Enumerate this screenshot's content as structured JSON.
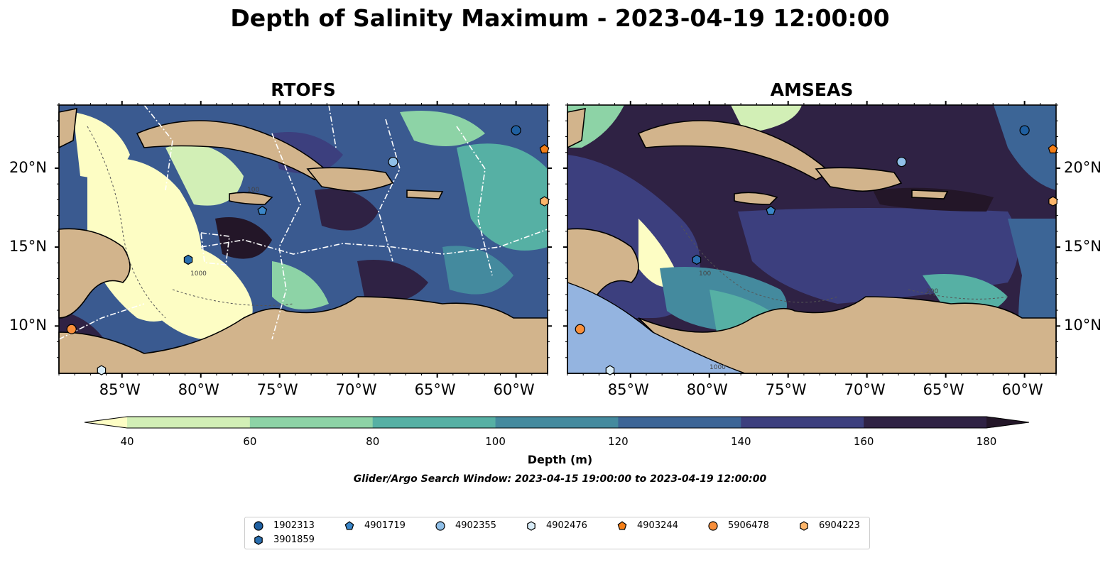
{
  "title": "Depth of Salinity Maximum - 2023-04-19 12:00:00",
  "panels": [
    {
      "title": "RTOFS"
    },
    {
      "title": "AMSEAS"
    }
  ],
  "axes": {
    "lon_ticks": [
      "85°W",
      "80°W",
      "75°W",
      "70°W",
      "65°W",
      "60°W"
    ],
    "lat_ticks": [
      "20°N",
      "15°N",
      "10°N"
    ],
    "lon_range": [
      -89,
      -58
    ],
    "lat_range": [
      7,
      24
    ]
  },
  "contour_labels": [
    "100",
    "1000",
    "100",
    "200",
    "1000"
  ],
  "colorbar": {
    "label": "Depth (m)",
    "ticks": [
      "40",
      "60",
      "80",
      "100",
      "120",
      "140",
      "160",
      "180"
    ],
    "colors": [
      "#fdfdc4",
      "#d2efb6",
      "#8dd3a6",
      "#56b0a4",
      "#448a9e",
      "#3c6596",
      "#3c3f7e",
      "#2f2244",
      "#231628"
    ],
    "extend": "both"
  },
  "search_window": "Glider/Argo Search Window: 2023-04-15 19:00:00 to 2023-04-19 12:00:00",
  "legend": {
    "items": [
      {
        "label": "1902313",
        "marker": "circle",
        "color": "#1f5fa0",
        "lon": -60.0,
        "lat": 22.4
      },
      {
        "label": "4901719",
        "marker": "pentagon",
        "color": "#3a86c8",
        "lon": -76.1,
        "lat": 17.3
      },
      {
        "label": "4902355",
        "marker": "circle",
        "color": "#8fbfe8",
        "lon": -67.8,
        "lat": 20.4
      },
      {
        "label": "4902476",
        "marker": "hexagon",
        "color": "#d8ecf8",
        "lon": -86.3,
        "lat": 7.2
      },
      {
        "label": "4903244",
        "marker": "pentagon",
        "color": "#f57f17",
        "lon": -58.2,
        "lat": 21.2
      },
      {
        "label": "5906478",
        "marker": "circle",
        "color": "#f98f3a",
        "lon": -88.2,
        "lat": 9.8
      },
      {
        "label": "6904223",
        "marker": "hexagon",
        "color": "#fdb56a",
        "lon": -58.2,
        "lat": 17.9
      },
      {
        "label": "3901859",
        "marker": "hexagon",
        "color": "#2a6fb0",
        "lon": -80.8,
        "lat": 14.2
      }
    ]
  }
}
